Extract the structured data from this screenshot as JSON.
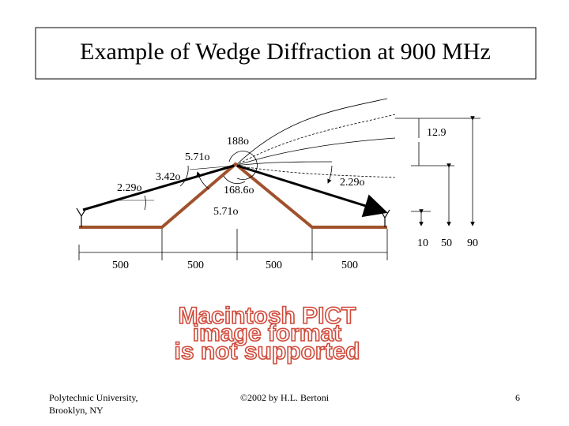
{
  "header": {
    "title": "Example of Wedge Diffraction at 900 MHz"
  },
  "angles": {
    "top_right_height": "12.9",
    "a188": "188o",
    "a571_top": "5.71o",
    "a342": "3.42o",
    "a229_left": "2.29o",
    "a1686": "168.6o",
    "a229_right": "2.29o",
    "a571_low": "5.71o"
  },
  "heights": [
    "10",
    "50",
    "90"
  ],
  "distances": [
    "500",
    "500",
    "500",
    "500"
  ],
  "placeholder": [
    "Macintosh PICT",
    "image format",
    "is not supported"
  ],
  "footer": {
    "institution": [
      "Polytechnic University,",
      "Brooklyn, NY"
    ],
    "copyright": "©2002 by H.L. Bertoni",
    "page": "6"
  }
}
